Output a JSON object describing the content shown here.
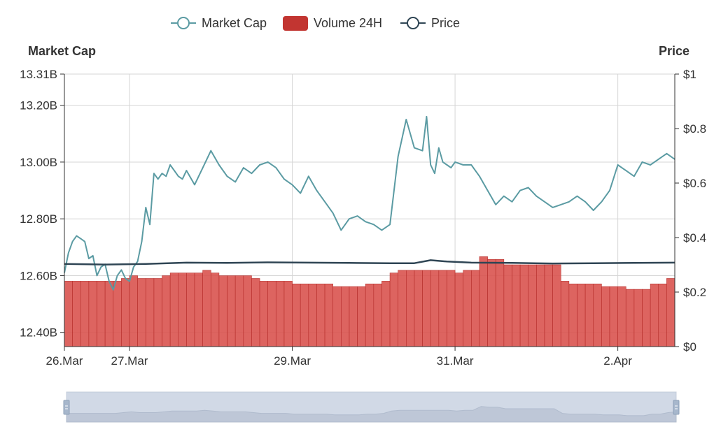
{
  "chart_data": {
    "type": "line",
    "legend": {
      "position": "top-center",
      "items": [
        {
          "label": "Market Cap",
          "symbol": "line-circle",
          "color": "#5b9ba3"
        },
        {
          "label": "Volume 24H",
          "symbol": "rounded-rect",
          "color": "#c23531"
        },
        {
          "label": "Price",
          "symbol": "line-circle",
          "color": "#2f4554"
        }
      ]
    },
    "left_axis": {
      "title": "Market Cap",
      "unit": "B",
      "ticks": [
        {
          "value": 12.4,
          "label": "12.40B"
        },
        {
          "value": 12.6,
          "label": "12.60B"
        },
        {
          "value": 12.8,
          "label": "12.80B"
        },
        {
          "value": 13.0,
          "label": "13.00B"
        },
        {
          "value": 13.2,
          "label": "13.20B"
        },
        {
          "value": 13.31,
          "label": "13.31B"
        }
      ],
      "min": 12.35,
      "max": 13.31
    },
    "right_axis": {
      "title": "Price",
      "ticks": [
        {
          "value": 0,
          "label": "$0"
        },
        {
          "value": 0.2,
          "label": "$0.2"
        },
        {
          "value": 0.4,
          "label": "$0.4"
        },
        {
          "value": 0.6,
          "label": "$0.6"
        },
        {
          "value": 0.8,
          "label": "$0.8"
        },
        {
          "value": 1.0,
          "label": "$1"
        }
      ],
      "min": 0,
      "max": 1
    },
    "x_axis": {
      "min": 26.0,
      "max": 33.5,
      "ticks": [
        {
          "value": 26.0,
          "label": "26.Mar"
        },
        {
          "value": 26.8,
          "label": "27.Mar"
        },
        {
          "value": 28.8,
          "label": "29.Mar"
        },
        {
          "value": 30.8,
          "label": "31.Mar"
        },
        {
          "value": 32.8,
          "label": "2.Apr"
        }
      ]
    },
    "grid": true,
    "series": [
      {
        "name": "Market Cap",
        "type": "line",
        "axis": "left",
        "color": "#5b9ba3",
        "x": [
          26.0,
          26.05,
          26.1,
          26.15,
          26.2,
          26.25,
          26.3,
          26.35,
          26.4,
          26.45,
          26.5,
          26.55,
          26.6,
          26.65,
          26.7,
          26.75,
          26.8,
          26.85,
          26.9,
          26.95,
          27.0,
          27.05,
          27.1,
          27.15,
          27.2,
          27.25,
          27.3,
          27.35,
          27.4,
          27.45,
          27.5,
          27.6,
          27.7,
          27.8,
          27.9,
          28.0,
          28.1,
          28.2,
          28.3,
          28.4,
          28.5,
          28.6,
          28.7,
          28.8,
          28.9,
          29.0,
          29.1,
          29.2,
          29.3,
          29.4,
          29.5,
          29.6,
          29.7,
          29.8,
          29.9,
          30.0,
          30.1,
          30.2,
          30.3,
          30.4,
          30.45,
          30.5,
          30.55,
          30.6,
          30.65,
          30.7,
          30.75,
          30.8,
          30.9,
          31.0,
          31.1,
          31.2,
          31.3,
          31.4,
          31.5,
          31.6,
          31.7,
          31.8,
          31.9,
          32.0,
          32.1,
          32.2,
          32.3,
          32.4,
          32.5,
          32.6,
          32.7,
          32.8,
          32.9,
          33.0,
          33.1,
          33.2,
          33.3,
          33.4,
          33.5
        ],
        "values": [
          12.61,
          12.68,
          12.72,
          12.74,
          12.73,
          12.72,
          12.66,
          12.67,
          12.6,
          12.63,
          12.64,
          12.58,
          12.55,
          12.6,
          12.62,
          12.59,
          12.58,
          12.63,
          12.65,
          12.72,
          12.84,
          12.78,
          12.96,
          12.94,
          12.96,
          12.95,
          12.99,
          12.97,
          12.95,
          12.94,
          12.97,
          12.92,
          12.98,
          13.04,
          12.99,
          12.95,
          12.93,
          12.98,
          12.96,
          12.99,
          13.0,
          12.98,
          12.94,
          12.92,
          12.89,
          12.95,
          12.9,
          12.86,
          12.82,
          12.76,
          12.8,
          12.81,
          12.79,
          12.78,
          12.76,
          12.78,
          13.02,
          13.15,
          13.05,
          13.04,
          13.16,
          12.99,
          12.96,
          13.05,
          13.0,
          12.99,
          12.98,
          13.0,
          12.99,
          12.99,
          12.95,
          12.9,
          12.85,
          12.88,
          12.86,
          12.9,
          12.91,
          12.88,
          12.86,
          12.84,
          12.85,
          12.86,
          12.88,
          12.86,
          12.83,
          12.86,
          12.9,
          12.99,
          12.97,
          12.95,
          13.0,
          12.99,
          13.01,
          13.03,
          13.01
        ]
      },
      {
        "name": "Volume 24H",
        "type": "bar",
        "axis": "right",
        "color": "#c23531",
        "x": [
          26.0,
          26.1,
          26.2,
          26.3,
          26.4,
          26.5,
          26.6,
          26.7,
          26.8,
          26.9,
          27.0,
          27.1,
          27.2,
          27.3,
          27.4,
          27.5,
          27.6,
          27.7,
          27.8,
          27.9,
          28.0,
          28.1,
          28.2,
          28.3,
          28.4,
          28.5,
          28.6,
          28.7,
          28.8,
          28.9,
          29.0,
          29.1,
          29.2,
          29.3,
          29.4,
          29.5,
          29.6,
          29.7,
          29.8,
          29.9,
          30.0,
          30.1,
          30.2,
          30.3,
          30.4,
          30.5,
          30.6,
          30.7,
          30.8,
          30.9,
          31.0,
          31.1,
          31.2,
          31.3,
          31.4,
          31.5,
          31.6,
          31.7,
          31.8,
          31.9,
          32.0,
          32.1,
          32.2,
          32.3,
          32.4,
          32.5,
          32.6,
          32.7,
          32.8,
          32.9,
          33.0,
          33.1,
          33.2,
          33.3,
          33.4,
          33.5
        ],
        "values": [
          0.24,
          0.24,
          0.24,
          0.24,
          0.24,
          0.24,
          0.24,
          0.25,
          0.26,
          0.25,
          0.25,
          0.25,
          0.26,
          0.27,
          0.27,
          0.27,
          0.27,
          0.28,
          0.27,
          0.26,
          0.26,
          0.26,
          0.26,
          0.25,
          0.24,
          0.24,
          0.24,
          0.24,
          0.23,
          0.23,
          0.23,
          0.23,
          0.23,
          0.22,
          0.22,
          0.22,
          0.22,
          0.23,
          0.23,
          0.24,
          0.27,
          0.28,
          0.28,
          0.28,
          0.28,
          0.28,
          0.28,
          0.28,
          0.27,
          0.28,
          0.28,
          0.33,
          0.32,
          0.32,
          0.3,
          0.3,
          0.3,
          0.3,
          0.3,
          0.3,
          0.3,
          0.24,
          0.23,
          0.23,
          0.23,
          0.23,
          0.22,
          0.22,
          0.22,
          0.21,
          0.21,
          0.21,
          0.23,
          0.23,
          0.25,
          0.26
        ]
      },
      {
        "name": "Price",
        "type": "line",
        "axis": "right",
        "color": "#2f4554",
        "x": [
          26.0,
          26.5,
          27.0,
          27.5,
          28.0,
          28.5,
          29.0,
          29.5,
          30.0,
          30.3,
          30.5,
          30.7,
          31.0,
          31.5,
          32.0,
          32.5,
          33.0,
          33.5
        ],
        "values": [
          0.303,
          0.301,
          0.303,
          0.308,
          0.307,
          0.309,
          0.308,
          0.307,
          0.306,
          0.306,
          0.317,
          0.312,
          0.308,
          0.307,
          0.305,
          0.306,
          0.307,
          0.308
        ]
      }
    ]
  }
}
